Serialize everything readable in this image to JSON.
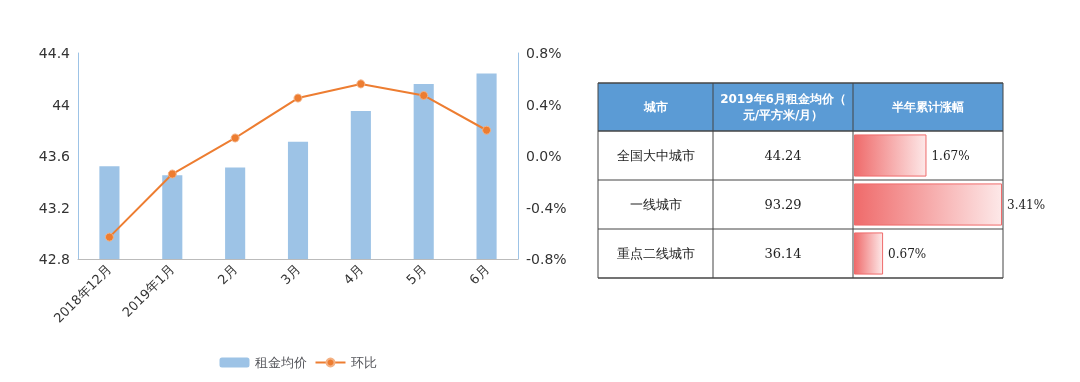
{
  "chart_data": [
    {
      "type": "bar",
      "categories": [
        "2018年12月",
        "2019年1月",
        "2月",
        "3月",
        "4月",
        "5月",
        "6月"
      ],
      "series": [
        {
          "name": "租金均价",
          "type": "bar",
          "color": "#9dc3e6",
          "values": [
            43.52,
            43.45,
            43.51,
            43.71,
            43.95,
            44.16,
            44.24
          ]
        },
        {
          "name": "环比",
          "type": "line",
          "axis": "y2",
          "color": "#ed7d31",
          "values": [
            -0.63,
            -0.14,
            0.14,
            0.45,
            0.56,
            0.47,
            0.2
          ]
        }
      ],
      "ylim": [
        42.8,
        44.4
      ],
      "yticks": [
        42.8,
        43.2,
        43.6,
        44,
        44.4
      ],
      "y2lim": [
        -0.8,
        0.8
      ],
      "y2ticks": [
        {
          "value": -0.8,
          "label": "-0.8%"
        },
        {
          "value": -0.4,
          "label": "-0.4%"
        },
        {
          "value": 0,
          "label": "0.0%"
        },
        {
          "value": 0.4,
          "label": "0.4%"
        },
        {
          "value": 0.8,
          "label": "0.8%"
        }
      ],
      "marker": "circle",
      "legend": "bottom",
      "grid": false
    },
    {
      "type": "bar",
      "orientation": "horizontal",
      "categories": [
        "全国大中城市",
        "一线城市",
        "重点二线城市"
      ],
      "y2_categories": [
        "44.24",
        "93.29",
        "36.14"
      ],
      "ylabel": "城市",
      "y2label": "2019年6月租金均价（元/平方米/月）",
      "xlabel": "半年累计涨幅",
      "values": [
        1.67,
        3.41,
        0.67
      ],
      "value_labels": [
        "1.67%",
        "3.41%",
        "0.67%"
      ],
      "color": "#ef6b6b",
      "legend": false
    }
  ]
}
